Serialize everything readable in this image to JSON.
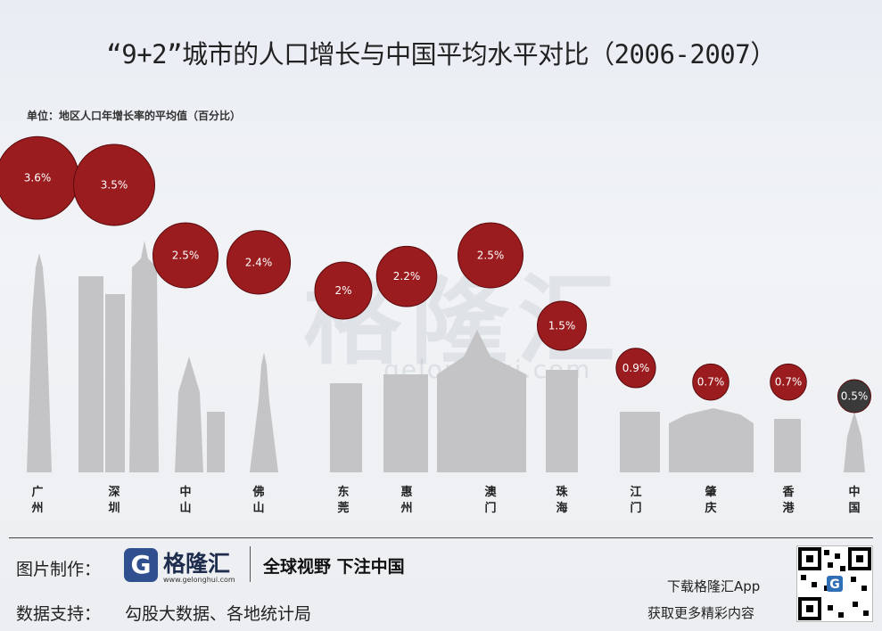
{
  "title": "“9+2”城市的人口增长与中国平均水平对比（2006-2007）",
  "unit_label": "单位：地区人口年增长率的平均值（百分比）",
  "watermark": {
    "brand": "格隆汇",
    "url": "gelonghui.com"
  },
  "chart_data": {
    "type": "bubble",
    "categories": [
      "广州",
      "深圳",
      "中山",
      "佛山",
      "东莞",
      "惠州",
      "澳门",
      "珠海",
      "江门",
      "肇庆",
      "香港",
      "中国"
    ],
    "values": [
      3.6,
      3.5,
      2.5,
      2.4,
      2.0,
      2.2,
      2.5,
      1.5,
      0.9,
      0.7,
      0.7,
      0.5
    ],
    "data_labels": [
      "3.6%",
      "3.5%",
      "2.5%",
      "2.4%",
      "2%",
      "2.2%",
      "2.5%",
      "1.5%",
      "0.9%",
      "0.7%",
      "0.7%",
      "0.5%"
    ],
    "colors": {
      "city": "#9b1c1f",
      "national": "#3a3a3a",
      "skyline": "#c4c4c6"
    }
  },
  "footer": {
    "made_by_label": "图片制作：",
    "brand_name": "格隆汇",
    "brand_url": "www.gelonghui.com",
    "slogan": "全球视野 下注中国",
    "data_support_label": "数据支持：",
    "data_support_value": "勾股大数据、各地统计局",
    "app_line1": "下载格隆汇App",
    "app_line2": "获取更多精彩内容"
  }
}
